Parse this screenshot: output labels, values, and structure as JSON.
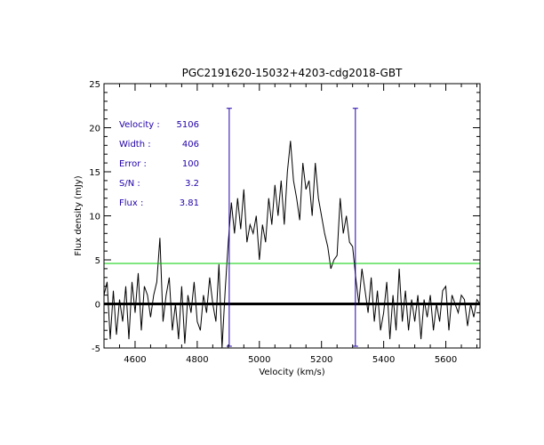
{
  "chart_data": {
    "type": "line",
    "title": "PGC2191620-15032+4203-cdg2018-GBT",
    "xlabel": "Velocity (km/s)",
    "ylabel": "Flux density (mJy)",
    "xlim": [
      4500,
      5710
    ],
    "ylim": [
      -5,
      25
    ],
    "x_ticks": [
      4600,
      4800,
      5000,
      5200,
      5400,
      5600
    ],
    "y_ticks": [
      -5,
      0,
      5,
      10,
      15,
      20,
      25
    ],
    "x_tick_labels": [
      "4600",
      "4800",
      "5000",
      "5200",
      "5400",
      "5600"
    ],
    "y_tick_labels": [
      "-5",
      "0",
      "5",
      "10",
      "15",
      "20",
      "25"
    ],
    "grid": false,
    "annotations": [
      {
        "label": "Velocity :",
        "value": "5106"
      },
      {
        "label": "Width :",
        "value": "406"
      },
      {
        "label": "Error :",
        "value": "100"
      },
      {
        "label": "S/N :",
        "value": "3.2"
      },
      {
        "label": "Flux :",
        "value": "3.81"
      }
    ],
    "reference_lines": [
      {
        "name": "zero level",
        "axis": "y",
        "value": 0,
        "color": "#000000"
      },
      {
        "name": "noise threshold",
        "axis": "y",
        "value": 4.6,
        "color": "#00cc00"
      },
      {
        "name": "lower velocity limit",
        "axis": "x",
        "value": 4903,
        "from": -4.8,
        "to": 22.2,
        "color": "#2200aa"
      },
      {
        "name": "upper velocity limit",
        "axis": "x",
        "value": 5309,
        "from": -4.8,
        "to": 22.2,
        "color": "#2200aa"
      }
    ],
    "series": [
      {
        "name": "spectrum",
        "color": "#000000",
        "x": [
          4500,
          4510,
          4520,
          4530,
          4540,
          4550,
          4560,
          4570,
          4580,
          4590,
          4600,
          4610,
          4620,
          4630,
          4640,
          4650,
          4660,
          4670,
          4680,
          4690,
          4700,
          4710,
          4720,
          4730,
          4740,
          4750,
          4760,
          4770,
          4780,
          4790,
          4800,
          4810,
          4820,
          4830,
          4840,
          4850,
          4860,
          4870,
          4880,
          4890,
          4900,
          4910,
          4920,
          4930,
          4940,
          4950,
          4960,
          4970,
          4980,
          4990,
          5000,
          5010,
          5020,
          5030,
          5040,
          5050,
          5060,
          5070,
          5080,
          5090,
          5100,
          5110,
          5120,
          5130,
          5140,
          5150,
          5160,
          5170,
          5180,
          5190,
          5200,
          5210,
          5220,
          5230,
          5240,
          5250,
          5260,
          5270,
          5280,
          5290,
          5300,
          5310,
          5320,
          5330,
          5340,
          5350,
          5360,
          5370,
          5380,
          5390,
          5400,
          5410,
          5420,
          5430,
          5440,
          5450,
          5460,
          5470,
          5480,
          5490,
          5500,
          5510,
          5520,
          5530,
          5540,
          5550,
          5560,
          5570,
          5580,
          5590,
          5600,
          5610,
          5620,
          5630,
          5640,
          5650,
          5660,
          5670,
          5680,
          5690,
          5700,
          5710
        ],
        "values": [
          1,
          2.5,
          -4,
          1.5,
          -3.5,
          0.5,
          -2,
          2,
          -4,
          2.5,
          -1,
          3.5,
          -3,
          2,
          1,
          -1.5,
          1,
          2.5,
          7.5,
          -2,
          1,
          3,
          -3,
          0,
          -4,
          2,
          -4.5,
          1,
          -1,
          2.5,
          -2,
          -3,
          1,
          -1,
          3,
          0,
          -2,
          4.5,
          -5,
          1.5,
          7,
          11.5,
          8,
          12,
          8.5,
          13,
          7,
          9,
          8,
          10,
          5,
          9,
          7,
          12,
          9,
          13.5,
          10,
          14,
          9,
          15,
          18.5,
          14,
          12,
          9.5,
          16,
          13,
          14,
          10,
          16,
          12,
          10,
          8,
          6.5,
          4,
          5,
          5.5,
          12,
          8,
          10,
          7,
          6.5,
          3,
          0,
          4,
          1.5,
          -1,
          3,
          -2,
          1.5,
          -3,
          -1,
          2.5,
          -4,
          1,
          -3,
          4,
          -2,
          1.5,
          -3,
          0.5,
          -2,
          1,
          -4,
          0.5,
          -1.5,
          1,
          -3,
          0,
          -2,
          1.5,
          2,
          -3,
          1,
          0,
          -1,
          1,
          0.5,
          -2.5,
          0,
          -1.5,
          0.5,
          0
        ]
      }
    ]
  }
}
